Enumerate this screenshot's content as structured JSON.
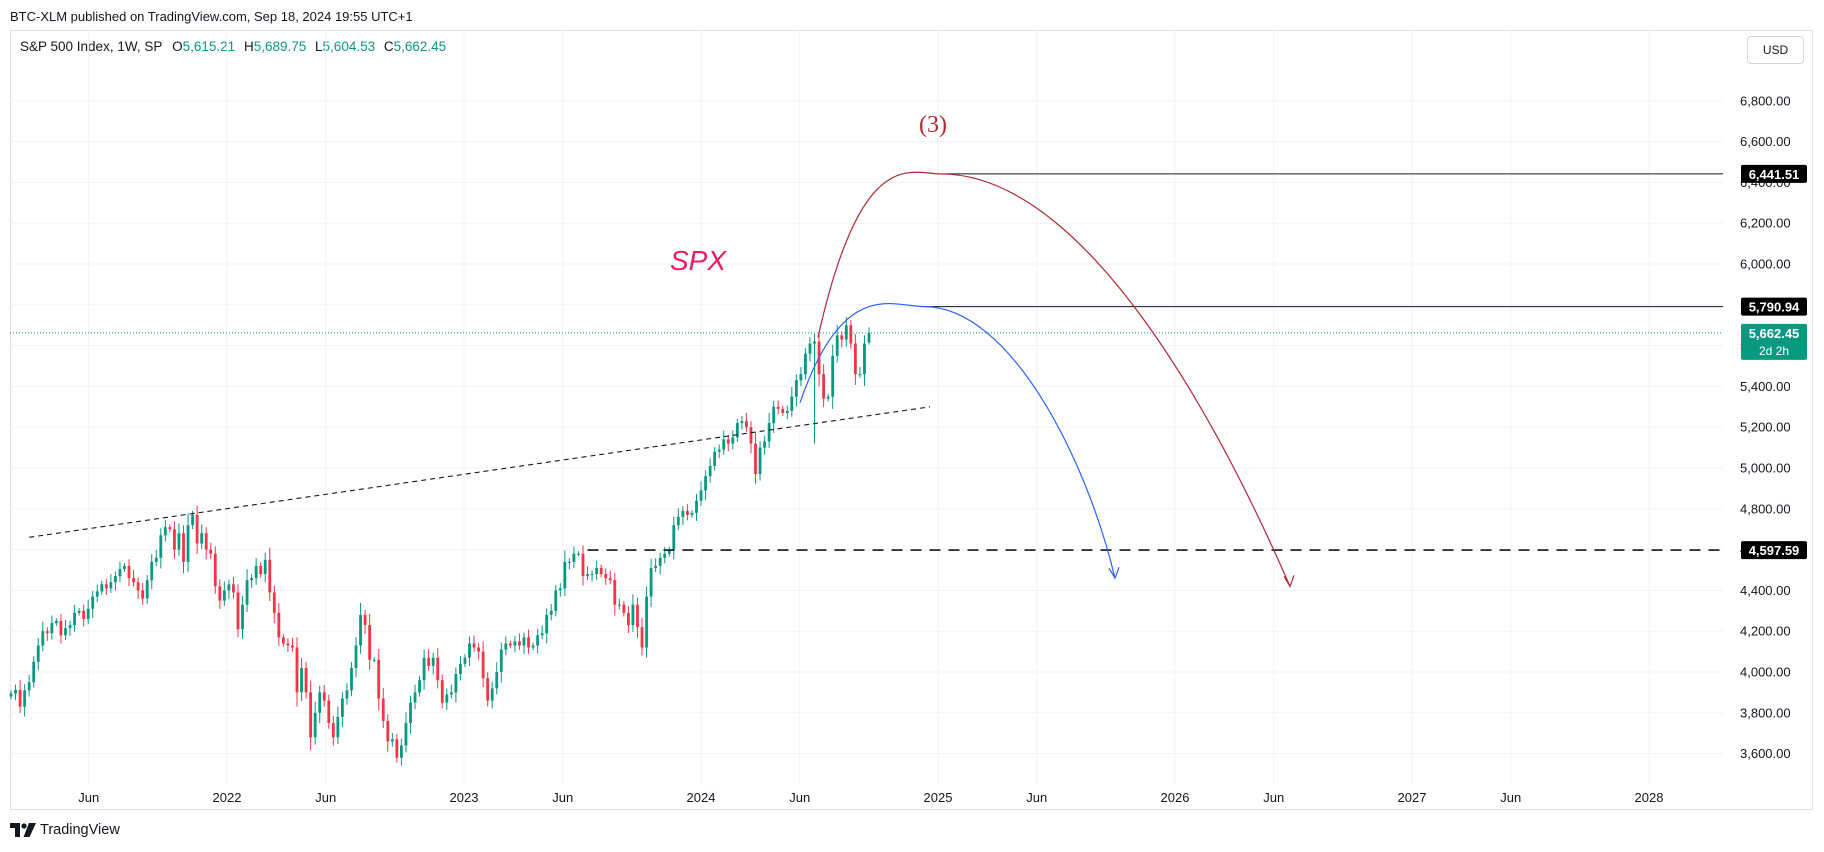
{
  "header": {
    "published": "BTC-XLM published on TradingView.com, Sep 18, 2024 19:55 UTC+1"
  },
  "legend": {
    "symbol": "S&P 500 Index, 1W, SP",
    "open_label": "O",
    "open": "5,615.21",
    "high_label": "H",
    "high": "5,689.75",
    "low_label": "L",
    "low": "5,604.53",
    "close_label": "C",
    "close": "5,662.45"
  },
  "currency_button": "USD",
  "brand": "TradingView",
  "annotations": {
    "spx_label": "SPX",
    "wave_label": "(3)"
  },
  "colors": {
    "up": "#089981",
    "down": "#f23645",
    "red_projection": "#b22833",
    "blue_projection": "#2962ff",
    "price_line": "#089981",
    "spx_text": "#e91e63"
  },
  "chart_data": {
    "type": "candlestick",
    "title": "S&P 500 Index, 1W, SP",
    "x_ticks": [
      "Jun",
      "2022",
      "Jun",
      "2023",
      "Jun",
      "2024",
      "Jun",
      "2025",
      "Jun",
      "2026",
      "Jun",
      "2027",
      "Jun",
      "2028"
    ],
    "y_ticks": [
      "3,600.00",
      "3,800.00",
      "4,000.00",
      "4,200.00",
      "4,400.00",
      "4,600.00",
      "4,800.00",
      "5,000.00",
      "5,200.00",
      "5,400.00",
      "5,600.00",
      "5,800.00",
      "6,000.00",
      "6,200.00",
      "6,400.00",
      "6,600.00",
      "6,800.00"
    ],
    "y_tick_values": [
      3600,
      3800,
      4000,
      4200,
      4400,
      4600,
      4800,
      5000,
      5200,
      5400,
      5600,
      5800,
      6000,
      6200,
      6400,
      6600,
      6800
    ],
    "ylim": [
      3470,
      6950
    ],
    "grid": true,
    "current_price": {
      "value": 5662.45,
      "label": "5,662.45",
      "countdown": "2d 2h"
    },
    "levels": [
      {
        "value": 6441.51,
        "label": "6,441.51"
      },
      {
        "value": 5790.94,
        "label": "5,790.94"
      },
      {
        "value": 4597.59,
        "label": "4,597.59"
      }
    ],
    "closes": [
      3895,
      3912,
      3830,
      3910,
      3950,
      4050,
      4130,
      4200,
      4190,
      4240,
      4250,
      4180,
      4215,
      4230,
      4290,
      4300,
      4260,
      4310,
      4370,
      4395,
      4430,
      4410,
      4440,
      4470,
      4505,
      4520,
      4460,
      4440,
      4400,
      4360,
      4450,
      4540,
      4560,
      4670,
      4710,
      4700,
      4600,
      4680,
      4540,
      4720,
      4770,
      4630,
      4680,
      4600,
      4580,
      4420,
      4350,
      4400,
      4430,
      4390,
      4210,
      4330,
      4450,
      4460,
      4520,
      4480,
      4550,
      4390,
      4290,
      4170,
      4140,
      4130,
      4120,
      3900,
      4020,
      3900,
      3680,
      3800,
      3900,
      3860,
      3750,
      3680,
      3780,
      3870,
      3910,
      4020,
      4130,
      4280,
      4230,
      4060,
      4060,
      3870,
      3760,
      3660,
      3670,
      3580,
      3640,
      3750,
      3850,
      3900,
      3960,
      4070,
      4030,
      4070,
      3960,
      3850,
      3890,
      3900,
      3990,
      4040,
      4070,
      4140,
      4120,
      4100,
      3970,
      3860,
      3920,
      4000,
      4110,
      4140,
      4130,
      4150,
      4130,
      4170,
      4120,
      4130,
      4180,
      4190,
      4280,
      4300,
      4400,
      4410,
      4540,
      4540,
      4580,
      4580,
      4470,
      4480,
      4480,
      4510,
      4480,
      4460,
      4450,
      4330,
      4330,
      4290,
      4230,
      4330,
      4220,
      4120,
      4370,
      4510,
      4520,
      4560,
      4580,
      4600,
      4720,
      4760,
      4790,
      4770,
      4780,
      4840,
      4890,
      4960,
      5010,
      5080,
      5090,
      5140,
      5120,
      5150,
      5220,
      5230,
      5200,
      5120,
      4970,
      5100,
      5130,
      5220,
      5300,
      5290,
      5270,
      5280,
      5350,
      5430,
      5460,
      5560,
      5610,
      5620,
      5460,
      5340,
      5350,
      5550,
      5650,
      5630,
      5700,
      5610,
      5460,
      5460,
      5610,
      5662
    ],
    "trendline": {
      "start": [
        "2021-04",
        4680
      ],
      "end": [
        "2025-01",
        5300
      ],
      "style": "dashed"
    },
    "support_line": {
      "start": [
        "2023-07",
        4597.59
      ],
      "value": 4597.59,
      "style": "dashed"
    },
    "projections": [
      {
        "label": "(3)",
        "color": "red",
        "from": [
          "2024-06",
          5640
        ],
        "peak": [
          "2025-01",
          6441.51
        ],
        "to": [
          "2026-06",
          4420
        ]
      },
      {
        "label": "",
        "color": "blue",
        "from": [
          "2024-05",
          5320
        ],
        "peak": [
          "2024-12",
          5790.94
        ],
        "to": [
          "2025-10",
          4460
        ]
      }
    ]
  }
}
